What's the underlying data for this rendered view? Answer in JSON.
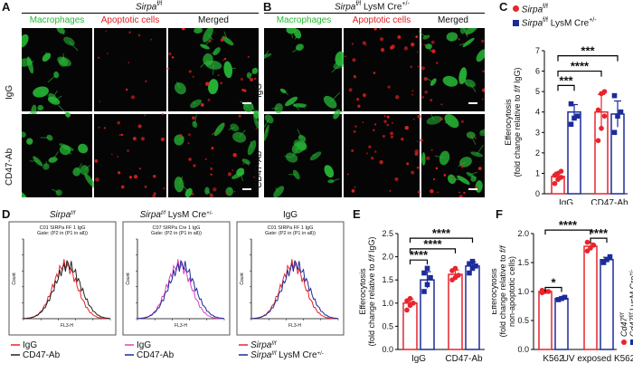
{
  "panels": {
    "A": {
      "letter": "A",
      "title": "Sirpa",
      "sup": "f/f",
      "cols": [
        "Macrophages",
        "Apoptotic cells",
        "Merged"
      ],
      "rows": [
        "IgG",
        "CD47-Ab"
      ]
    },
    "B": {
      "letter": "B",
      "title": "Sirpa",
      "sup": "f/f",
      "title_rest": " LysM Cre",
      "sup2": "+/-",
      "cols": [
        "Macrophages",
        "Apoptotic cells",
        "Merged"
      ],
      "rows": [
        "IgG",
        "CD47-Ab"
      ]
    },
    "C": {
      "letter": "C"
    },
    "D": {
      "letter": "D"
    },
    "E": {
      "letter": "E"
    },
    "F": {
      "letter": "F"
    }
  },
  "colors": {
    "red": "#e8242c",
    "blue": "#1c2b9a",
    "green": "#27b836",
    "cellred": "#e02020"
  },
  "legendC": {
    "a": "Sirpa",
    "a_sup": "f/f",
    "b": "Sirpa",
    "b_sup": "f/f",
    "b_rest": " LysM Cre",
    "b_sup2": "+/-"
  },
  "flow": [
    {
      "title": "Sirpa",
      "title_sup": "f/f",
      "inner1": "C01 SIRPa FF 1 IgG",
      "inner2": "Gate: (P2 in (P1 in all))",
      "leg": [
        "IgG",
        "CD47-Ab"
      ],
      "legcolors": [
        "#e8242c",
        "#222222"
      ]
    },
    {
      "title": "Sirpa",
      "title_sup": "f/f",
      "title_rest": " LysM Cre",
      "title_sup2": "+/-",
      "inner1": "C07 SIRPa Cre 1 IgG",
      "inner2": "Gate: (P2 in (P1 in all))",
      "leg": [
        "IgG",
        "CD47-Ab"
      ],
      "legcolors": [
        "#e040c0",
        "#1c2b9a"
      ]
    },
    {
      "title": "IgG",
      "inner1": "C01 SIRPa FF 1 IgG",
      "inner2": "Gate: (P2 in (P1 in all))",
      "leg": [
        "Sirpa",
        "Sirpa"
      ],
      "legsup": [
        "f/f",
        "f/f"
      ],
      "legrest": [
        "",
        " LysM Cre"
      ],
      "legsup2": [
        "",
        "+/-"
      ],
      "legcolors": [
        "#e8242c",
        "#1c2b9a"
      ]
    }
  ],
  "flow_axis": {
    "ylabel": "Count",
    "xlabel": "FL3-H"
  },
  "chart_data": [
    {
      "type": "bar",
      "id": "C",
      "categories": [
        "IgG",
        "CD47-Ab"
      ],
      "ylabel": "Efferocytosis\n(fold change relative to f/f IgG)",
      "ylim": [
        0,
        7
      ],
      "yticks": [
        0,
        1,
        2,
        3,
        4,
        5,
        6,
        7
      ],
      "series": [
        {
          "values": [
            0.85,
            4.0
          ],
          "points": [
            [
              0.5,
              0.7,
              0.8,
              0.9,
              1.0,
              1.1
            ],
            [
              2.6,
              3.2,
              3.8,
              4.1,
              4.9,
              5.0
            ]
          ]
        },
        {
          "values": [
            4.0,
            3.9
          ],
          "points": [
            [
              3.4,
              3.7,
              3.8,
              4.4
            ],
            [
              3.0,
              3.8,
              4.0,
              4.8
            ]
          ]
        }
      ],
      "significance": [
        {
          "label": "***"
        },
        {
          "label": "****"
        },
        {
          "label": "***"
        }
      ]
    },
    {
      "type": "bar",
      "id": "E",
      "categories": [
        "IgG",
        "CD47-Ab"
      ],
      "ylabel": "Efferocytosis\n(fold change relative to f/f IgG)",
      "ylim": [
        0,
        2.5
      ],
      "yticks": [
        0.0,
        0.5,
        1.0,
        1.5,
        2.0,
        2.5
      ],
      "series": [
        {
          "values": [
            1.0,
            1.62
          ],
          "points": [
            [
              0.85,
              0.95,
              1.0,
              1.05,
              1.1
            ],
            [
              1.5,
              1.55,
              1.6,
              1.7,
              1.75
            ]
          ]
        },
        {
          "values": [
            1.5,
            1.8
          ],
          "points": [
            [
              1.25,
              1.4,
              1.55,
              1.65,
              1.75
            ],
            [
              1.65,
              1.75,
              1.8,
              1.85,
              1.9
            ]
          ]
        }
      ],
      "significance": [
        {
          "label": "****"
        },
        {
          "label": "****"
        },
        {
          "label": "****"
        }
      ]
    },
    {
      "type": "bar",
      "id": "F",
      "categories": [
        "K562",
        "UV exposed K562"
      ],
      "ylabel": "Efferocytosis\n(fold change relative to f/f\nnon-apoptotic cells)",
      "ylim": [
        0,
        2.0
      ],
      "yticks": [
        0.0,
        0.5,
        1.0,
        1.5,
        2.0
      ],
      "series": [
        {
          "name": "Cd47",
          "name_sup": "f/f",
          "values": [
            1.0,
            1.78
          ],
          "points": [
            [
              0.98,
              1.0,
              1.0,
              1.02
            ],
            [
              1.7,
              1.75,
              1.8,
              1.85
            ]
          ]
        },
        {
          "name": "Cd47",
          "name_sup": "f/f",
          "name_rest": " LysM Cre",
          "name_sup2": "+/-",
          "values": [
            0.88,
            1.55
          ],
          "points": [
            [
              0.86,
              0.88,
              0.9
            ],
            [
              1.5,
              1.55,
              1.6
            ]
          ]
        }
      ],
      "significance": [
        {
          "label": "*"
        },
        {
          "label": "****"
        },
        {
          "label": "****"
        }
      ]
    }
  ]
}
